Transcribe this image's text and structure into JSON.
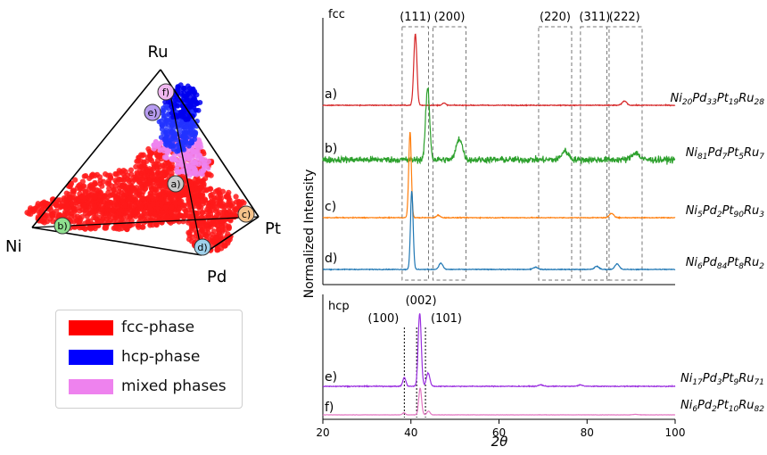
{
  "chart_data": [
    {
      "type": "scatter",
      "subtype": "ternary-tetrahedron",
      "vertices": [
        "Ru",
        "Ni",
        "Pt",
        "Pd"
      ],
      "points": [
        {
          "label": "a)",
          "color": "#c9c9c9"
        },
        {
          "label": "b)",
          "color": "#8fe08f"
        },
        {
          "label": "c)",
          "color": "#f5c28a"
        },
        {
          "label": "d)",
          "color": "#9fd0ea"
        },
        {
          "label": "e)",
          "color": "#b79cf0"
        },
        {
          "label": "f)",
          "color": "#f0b7f0"
        }
      ],
      "legend": [
        {
          "name": "fcc-phase",
          "color": "#ff0000"
        },
        {
          "name": "hcp-phase",
          "color": "#0000ff"
        },
        {
          "name": "mixed phases",
          "color": "#ee82ee"
        }
      ]
    },
    {
      "type": "line",
      "panel": "fcc",
      "xlim": [
        20,
        100
      ],
      "ylabel": "Normalized Intensity",
      "reflections": [
        {
          "label": "(111)",
          "range": [
            38,
            44
          ]
        },
        {
          "label": "(200)",
          "range": [
            45,
            52.5
          ]
        },
        {
          "label": "(220)",
          "range": [
            69,
            76.5
          ]
        },
        {
          "label": "(311)",
          "range": [
            78.5,
            85
          ]
        },
        {
          "label": "(222)",
          "range": [
            84.5,
            92.5
          ]
        }
      ],
      "series": [
        {
          "label": "a)",
          "composition": [
            "Ni",
            "20",
            "Pd",
            "33",
            "Pt",
            "19",
            "Ru",
            "28"
          ],
          "color": "#d62728",
          "peaks": [
            {
              "x": 41,
              "h": 1.0,
              "w": 0.35
            },
            {
              "x": 47.5,
              "h": 0.03,
              "w": 0.4
            },
            {
              "x": 88.5,
              "h": 0.06,
              "w": 0.5
            }
          ],
          "noise": 0.01
        },
        {
          "label": "b)",
          "composition": [
            "Ni",
            "81",
            "Pd",
            "7",
            "Pt",
            "5",
            "Ru",
            "7"
          ],
          "color": "#2ca02c",
          "peaks": [
            {
              "x": 43.8,
              "h": 1.0,
              "w": 0.45
            },
            {
              "x": 51.0,
              "h": 0.3,
              "w": 0.7
            },
            {
              "x": 75.0,
              "h": 0.12,
              "w": 0.8
            },
            {
              "x": 91.0,
              "h": 0.1,
              "w": 0.8
            }
          ],
          "noise": 0.08
        },
        {
          "label": "c)",
          "composition": [
            "Ni",
            "5",
            "Pd",
            "2",
            "Pt",
            "90",
            "Ru",
            "3"
          ],
          "color": "#ff7f0e",
          "peaks": [
            {
              "x": 39.8,
              "h": 1.0,
              "w": 0.3
            },
            {
              "x": 46.2,
              "h": 0.03,
              "w": 0.4
            },
            {
              "x": 85.6,
              "h": 0.05,
              "w": 0.5
            }
          ],
          "noise": 0.008
        },
        {
          "label": "d)",
          "composition": [
            "Ni",
            "6",
            "Pd",
            "84",
            "Pt",
            "8",
            "Ru",
            "2"
          ],
          "color": "#1f77b4",
          "peaks": [
            {
              "x": 40.2,
              "h": 1.0,
              "w": 0.3
            },
            {
              "x": 46.8,
              "h": 0.08,
              "w": 0.45
            },
            {
              "x": 68.3,
              "h": 0.03,
              "w": 0.5
            },
            {
              "x": 82.2,
              "h": 0.04,
              "w": 0.5
            },
            {
              "x": 86.8,
              "h": 0.07,
              "w": 0.5
            }
          ],
          "noise": 0.008
        }
      ]
    },
    {
      "type": "line",
      "panel": "hcp",
      "xlim": [
        20,
        100
      ],
      "xlabel": "2θ",
      "xticks": [
        20,
        40,
        60,
        80,
        100
      ],
      "reflections": [
        {
          "label": "(100)",
          "x": 38.5
        },
        {
          "label": "(002)",
          "range": [
            41.3,
            43.3
          ]
        },
        {
          "label": "(101)",
          "x": 43.3
        }
      ],
      "series": [
        {
          "label": "e)",
          "composition": [
            "Ni",
            "17",
            "Pd",
            "3",
            "Pt",
            "9",
            "Ru",
            "71"
          ],
          "color": "#9b30e0",
          "peaks": [
            {
              "x": 38.5,
              "h": 0.12,
              "w": 0.35
            },
            {
              "x": 42.0,
              "h": 1.0,
              "w": 0.35
            },
            {
              "x": 43.9,
              "h": 0.18,
              "w": 0.4
            },
            {
              "x": 69.5,
              "h": 0.02,
              "w": 0.5
            },
            {
              "x": 78.5,
              "h": 0.02,
              "w": 0.5
            }
          ],
          "noise": 0.01
        },
        {
          "label": "f)",
          "composition": [
            "Ni",
            "6",
            "Pd",
            "2",
            "Pt",
            "10",
            "Ru",
            "82"
          ],
          "color": "#e377c2",
          "peaks": [
            {
              "x": 38.4,
              "h": 0.08,
              "w": 0.3
            },
            {
              "x": 42.1,
              "h": 1.0,
              "w": 0.32
            },
            {
              "x": 44.0,
              "h": 0.14,
              "w": 0.35
            },
            {
              "x": 91.0,
              "h": 0.02,
              "w": 0.5
            }
          ],
          "noise": 0.01
        }
      ]
    }
  ]
}
